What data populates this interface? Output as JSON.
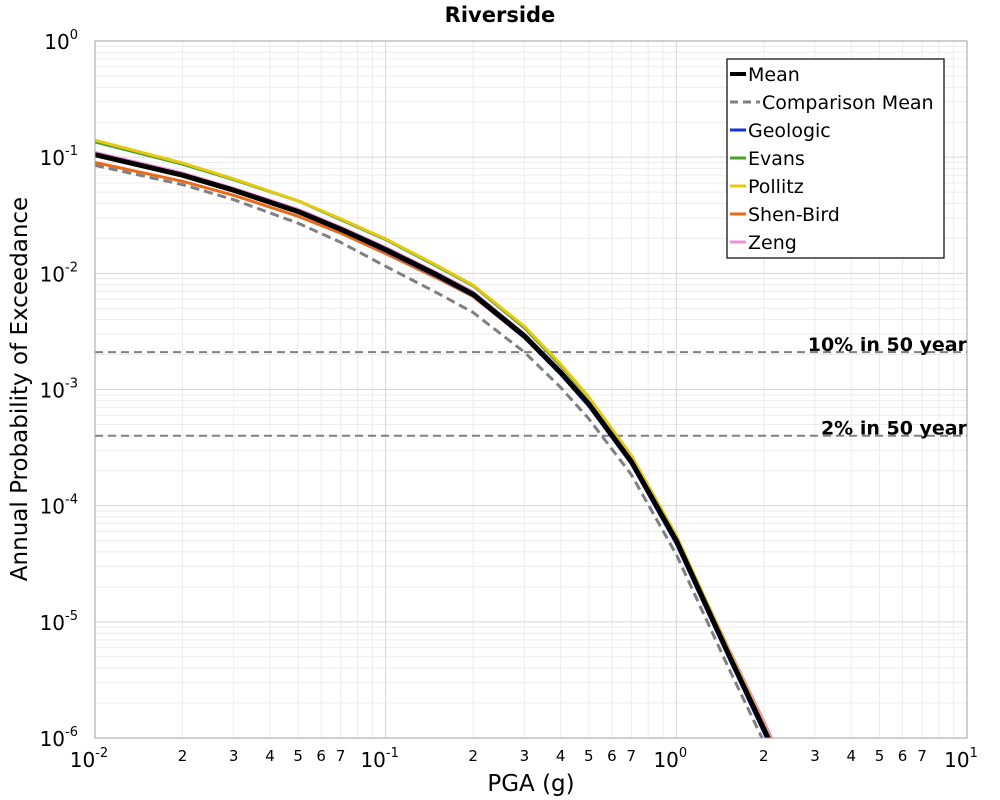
{
  "chart_data": {
    "type": "line",
    "title": "Riverside",
    "xlabel": "PGA (g)",
    "ylabel": "Annual Probability of Exceedance",
    "xscale": "log",
    "yscale": "log",
    "xlim": [
      0.01,
      10
    ],
    "ylim": [
      1e-06,
      1
    ],
    "grid": true,
    "legend_position": "top-right",
    "x_major_ticks": [
      {
        "base": "10",
        "exp": "-2"
      },
      {
        "base": "10",
        "exp": "-1"
      },
      {
        "base": "10",
        "exp": "0"
      },
      {
        "base": "10",
        "exp": "1"
      }
    ],
    "x_minor_tick_labels": [
      "2",
      "3",
      "4",
      "5",
      "6",
      "7"
    ],
    "y_major_ticks": [
      {
        "base": "10",
        "exp": "0"
      },
      {
        "base": "10",
        "exp": "-1"
      },
      {
        "base": "10",
        "exp": "-2"
      },
      {
        "base": "10",
        "exp": "-3"
      },
      {
        "base": "10",
        "exp": "-4"
      },
      {
        "base": "10",
        "exp": "-5"
      },
      {
        "base": "10",
        "exp": "-6"
      }
    ],
    "reference_lines": [
      {
        "label": "10% in 50 year",
        "y": 0.0021
      },
      {
        "label": "2% in 50 year",
        "y": 0.0004
      }
    ],
    "x": [
      0.01,
      0.02,
      0.03,
      0.05,
      0.07,
      0.1,
      0.15,
      0.2,
      0.3,
      0.4,
      0.5,
      0.7,
      1.0,
      1.5,
      2.0,
      2.5
    ],
    "series": [
      {
        "name": "Mean",
        "color": "#000000",
        "style": "solid",
        "values": [
          0.105,
          0.07,
          0.052,
          0.034,
          0.024,
          0.016,
          0.0097,
          0.0066,
          0.0029,
          0.0014,
          0.00075,
          0.00024,
          5e-05,
          5.5e-06,
          1.2e-06,
          3.6e-07
        ]
      },
      {
        "name": "Comparison Mean",
        "color": "#808080",
        "style": "dashed",
        "values": [
          0.085,
          0.058,
          0.043,
          0.027,
          0.0185,
          0.0115,
          0.0068,
          0.0046,
          0.0021,
          0.00104,
          0.00056,
          0.000185,
          3.8e-05,
          4.2e-06,
          9.3e-07,
          2.8e-07
        ]
      },
      {
        "name": "Geologic",
        "color": "#1432e6",
        "style": "solid",
        "values": [
          0.104,
          0.069,
          0.051,
          0.0335,
          0.0235,
          0.0155,
          0.0094,
          0.0064,
          0.0028,
          0.00135,
          0.00072,
          0.00023,
          4.7e-05,
          5.2e-06,
          1.12e-06,
          3.4e-07
        ]
      },
      {
        "name": "Evans",
        "color": "#4aa02a",
        "style": "solid",
        "values": [
          0.135,
          0.087,
          0.064,
          0.042,
          0.029,
          0.0195,
          0.0115,
          0.0078,
          0.0034,
          0.0016,
          0.00085,
          0.00027,
          5.5e-05,
          6e-06,
          1.3e-06,
          3.8e-07
        ]
      },
      {
        "name": "Pollitz",
        "color": "#e6c814",
        "style": "solid",
        "values": [
          0.14,
          0.089,
          0.065,
          0.042,
          0.0295,
          0.0198,
          0.0117,
          0.0079,
          0.0035,
          0.00165,
          0.00086,
          0.00027,
          5.5e-05,
          6e-06,
          1.3e-06,
          3.8e-07
        ]
      },
      {
        "name": "Shen-Bird",
        "color": "#e86a1a",
        "style": "solid",
        "values": [
          0.09,
          0.062,
          0.047,
          0.031,
          0.0222,
          0.0148,
          0.0091,
          0.0063,
          0.0028,
          0.00136,
          0.00073,
          0.00023,
          4.9e-05,
          5.4e-06,
          1.2e-06,
          3.6e-07
        ]
      },
      {
        "name": "Zeng",
        "color": "#f090d8",
        "style": "solid",
        "values": [
          0.11,
          0.073,
          0.054,
          0.0355,
          0.025,
          0.0167,
          0.0101,
          0.0069,
          0.003,
          0.00145,
          0.00077,
          0.00025,
          5.3e-05,
          6.2e-06,
          1.4e-06,
          4.2e-07
        ]
      }
    ]
  }
}
